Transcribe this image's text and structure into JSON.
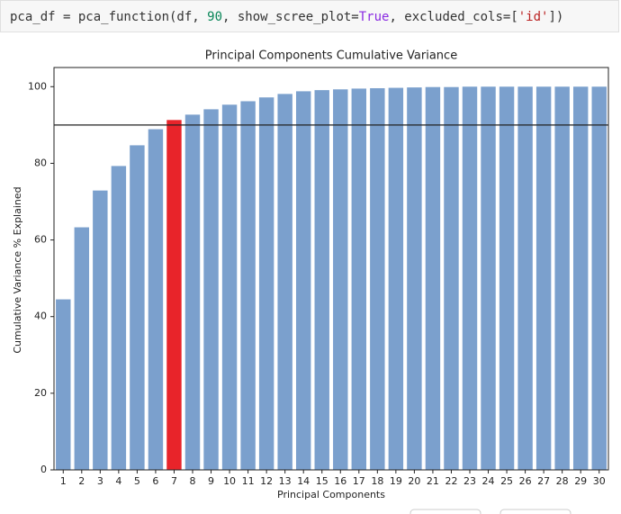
{
  "code": {
    "tokens": [
      "pca_df = pca_function(df, ",
      "90",
      ", show_scree_plot=",
      "True",
      ", excluded_cols=[",
      "'id'",
      "])"
    ]
  },
  "chart_data": {
    "type": "bar",
    "title": "Principal Components Cumulative Variance",
    "x_label": "Principal Components",
    "y_label": "Cumulative Variance % Explained",
    "categories": [
      "1",
      "2",
      "3",
      "4",
      "5",
      "6",
      "7",
      "8",
      "9",
      "10",
      "11",
      "12",
      "13",
      "14",
      "15",
      "16",
      "17",
      "18",
      "19",
      "20",
      "21",
      "22",
      "23",
      "24",
      "25",
      "26",
      "27",
      "28",
      "29",
      "30"
    ],
    "values": [
      44.5,
      63.3,
      72.9,
      79.3,
      84.7,
      88.9,
      91.3,
      92.7,
      94.1,
      95.3,
      96.2,
      97.2,
      98.1,
      98.8,
      99.1,
      99.3,
      99.5,
      99.6,
      99.7,
      99.8,
      99.9,
      99.9,
      100,
      100,
      100,
      100,
      100,
      100,
      100,
      100
    ],
    "colors": [
      "#7ba0cd",
      "#7ba0cd",
      "#7ba0cd",
      "#7ba0cd",
      "#7ba0cd",
      "#7ba0cd",
      "#e8242a",
      "#7ba0cd",
      "#7ba0cd",
      "#7ba0cd",
      "#7ba0cd",
      "#7ba0cd",
      "#7ba0cd",
      "#7ba0cd",
      "#7ba0cd",
      "#7ba0cd",
      "#7ba0cd",
      "#7ba0cd",
      "#7ba0cd",
      "#7ba0cd",
      "#7ba0cd",
      "#7ba0cd",
      "#7ba0cd",
      "#7ba0cd",
      "#7ba0cd",
      "#7ba0cd",
      "#7ba0cd",
      "#7ba0cd",
      "#7ba0cd",
      "#7ba0cd"
    ],
    "threshold": 90,
    "ylim": [
      0,
      105
    ],
    "yticks": [
      0,
      20,
      40,
      60,
      80,
      100
    ]
  }
}
